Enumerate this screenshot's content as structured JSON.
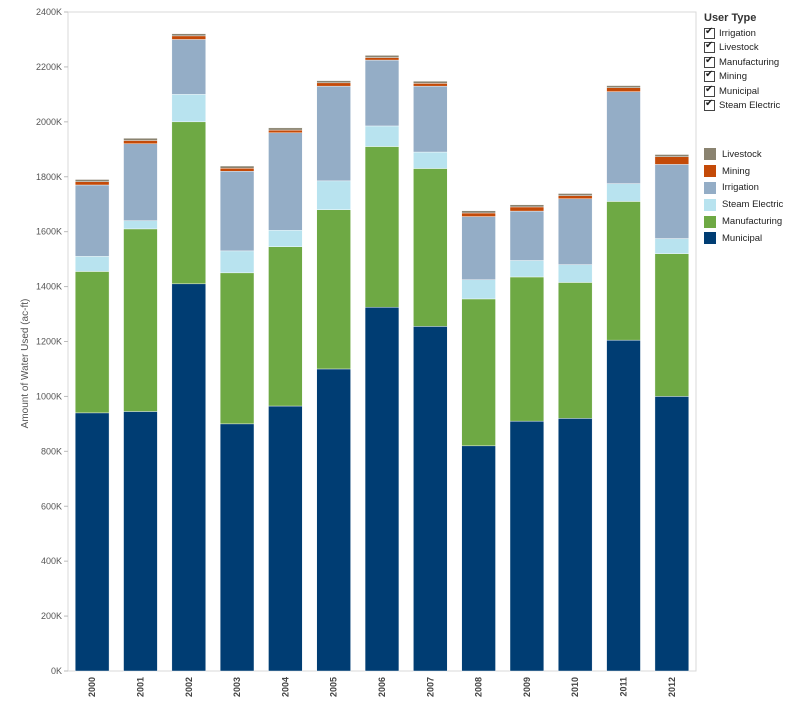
{
  "chart_data": {
    "type": "bar",
    "stacked": true,
    "categories": [
      "2000",
      "2001",
      "2002",
      "2003",
      "2004",
      "2005",
      "2006",
      "2007",
      "2008",
      "2009",
      "2010",
      "2011",
      "2012"
    ],
    "ylabel": "Amount of Water Used (ac-ft)",
    "ylim": [
      0,
      2400000
    ],
    "yticks": [
      0,
      200000,
      400000,
      600000,
      800000,
      1000000,
      1200000,
      1400000,
      1600000,
      1800000,
      2000000,
      2200000,
      2400000
    ],
    "ytick_labels": [
      "0K",
      "200K",
      "400K",
      "600K",
      "800K",
      "1000K",
      "1200K",
      "1400K",
      "1600K",
      "1800K",
      "2000K",
      "2200K",
      "2400K"
    ],
    "grid": false,
    "series": [
      {
        "name": "Municipal",
        "color": "#003d73",
        "values": [
          940000,
          945000,
          1410000,
          900000,
          965000,
          1100000,
          1325000,
          1255000,
          820000,
          910000,
          920000,
          1205000,
          1000000
        ]
      },
      {
        "name": "Manufacturing",
        "color": "#6ea944",
        "values": [
          515000,
          665000,
          590000,
          550000,
          580000,
          580000,
          585000,
          575000,
          535000,
          525000,
          495000,
          505000,
          520000
        ]
      },
      {
        "name": "Steam Electric",
        "color": "#b8e3ef",
        "values": [
          55000,
          30000,
          100000,
          80000,
          60000,
          105000,
          75000,
          60000,
          70000,
          60000,
          65000,
          65000,
          55000
        ]
      },
      {
        "name": "Irrigation",
        "color": "#94adc6",
        "values": [
          260000,
          280000,
          200000,
          290000,
          355000,
          345000,
          240000,
          240000,
          230000,
          180000,
          240000,
          335000,
          270000
        ]
      },
      {
        "name": "Mining",
        "color": "#c44a08",
        "values": [
          12000,
          12000,
          13000,
          11000,
          10000,
          12000,
          9000,
          10000,
          13000,
          15000,
          11000,
          14000,
          28000
        ]
      },
      {
        "name": "Livestock",
        "color": "#8a8370",
        "values": [
          8000,
          8000,
          8000,
          8000,
          8000,
          8000,
          8000,
          8000,
          8000,
          8000,
          8000,
          8000,
          8000
        ]
      }
    ]
  },
  "filter": {
    "title": "User Type",
    "items": [
      "Irrigation",
      "Livestock",
      "Manufacturing",
      "Mining",
      "Municipal",
      "Steam Electric"
    ]
  },
  "legend": {
    "items": [
      {
        "label": "Livestock",
        "color": "#8a8370"
      },
      {
        "label": "Mining",
        "color": "#c44a08"
      },
      {
        "label": "Irrigation",
        "color": "#94adc6"
      },
      {
        "label": "Steam Electric",
        "color": "#b8e3ef"
      },
      {
        "label": "Manufacturing",
        "color": "#6ea944"
      },
      {
        "label": "Municipal",
        "color": "#003d73"
      }
    ]
  }
}
